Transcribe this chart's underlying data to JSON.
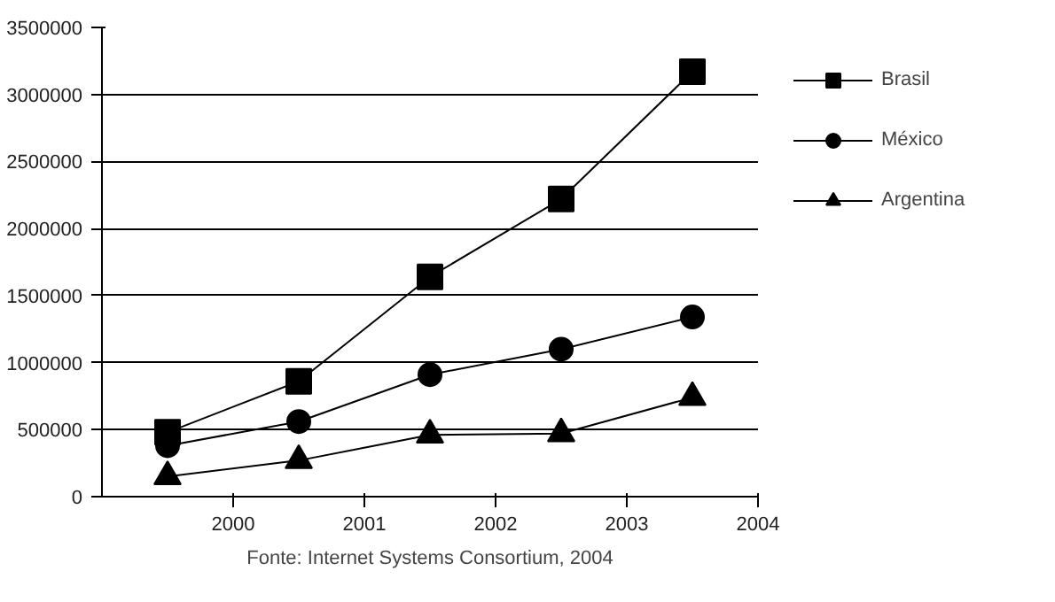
{
  "chart_data": {
    "type": "line",
    "x": [
      1999.5,
      2000.5,
      2001.5,
      2002.5,
      2003.5
    ],
    "series": [
      {
        "name": "Brasil",
        "color": "#000000",
        "marker": "square",
        "values": [
          480000,
          860000,
          1640000,
          2220000,
          3170000
        ]
      },
      {
        "name": "México",
        "color": "#000000",
        "marker": "circle",
        "values": [
          380000,
          560000,
          910000,
          1100000,
          1340000
        ]
      },
      {
        "name": "Argentina",
        "color": "#000000",
        "marker": "triangle",
        "values": [
          150000,
          270000,
          460000,
          470000,
          740000
        ]
      }
    ],
    "xlim": [
      1999,
      2004
    ],
    "xticks": [
      2000,
      2001,
      2002,
      2003,
      2004
    ],
    "ylim": [
      0,
      3500000
    ],
    "yticks": [
      0,
      500000,
      1000000,
      1500000,
      2000000,
      2500000,
      3000000,
      3500000
    ],
    "grid": "y",
    "legend": "right",
    "line_style": "solid",
    "annotations": [
      "Fonte: Internet Systems Consortium, 2004"
    ]
  }
}
